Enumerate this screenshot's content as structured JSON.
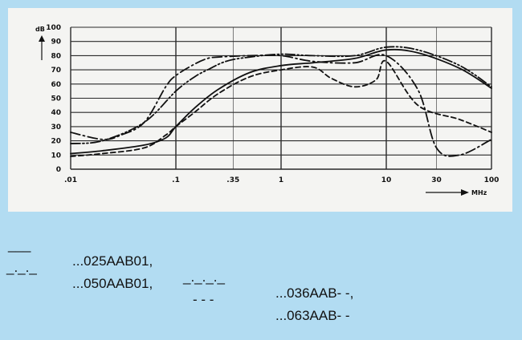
{
  "chart_data": {
    "type": "line",
    "ylabel": "dB",
    "xlabel": "MHz",
    "x_scale": "log",
    "xlim": [
      0.01,
      100
    ],
    "ylim": [
      0,
      100
    ],
    "x_ticks": [
      ".01",
      ".1",
      ".35",
      "1",
      "10",
      "30",
      "100"
    ],
    "y_ticks": [
      "0",
      "10",
      "20",
      "30",
      "40",
      "50",
      "60",
      "70",
      "80",
      "90",
      "100"
    ],
    "grid": true,
    "series": [
      {
        "name": "...025AAB01",
        "style": "solid",
        "x": [
          0.01,
          0.02,
          0.05,
          0.08,
          0.1,
          0.15,
          0.25,
          0.5,
          1,
          2,
          5,
          10,
          20,
          50,
          100
        ],
        "y": [
          11,
          13,
          17,
          22,
          30,
          43,
          56,
          68,
          73,
          75,
          78,
          84,
          82,
          71,
          57
        ]
      },
      {
        "name": "...036AAB- -",
        "style": "dashdotdot",
        "x": [
          0.01,
          0.02,
          0.05,
          0.1,
          0.15,
          0.2,
          0.3,
          0.5,
          1,
          2,
          5,
          10,
          20,
          50,
          100
        ],
        "y": [
          18,
          20,
          33,
          55,
          65,
          70,
          76,
          79,
          81,
          80,
          80,
          86,
          84,
          73,
          58
        ]
      },
      {
        "name": "...050AAB01",
        "style": "dashdot",
        "x": [
          0.01,
          0.02,
          0.03,
          0.05,
          0.08,
          0.1,
          0.15,
          0.2,
          0.25,
          0.5,
          1,
          2,
          5,
          10,
          20,
          30,
          50,
          100
        ],
        "y": [
          26,
          21,
          24,
          33,
          58,
          66,
          74,
          78,
          79,
          80,
          80,
          76,
          75,
          80,
          56,
          15,
          10,
          21
        ]
      },
      {
        "name": "...063AAB- -",
        "style": "dashed",
        "x": [
          0.01,
          0.02,
          0.05,
          0.08,
          0.1,
          0.15,
          0.25,
          0.5,
          1,
          2,
          3,
          5,
          8,
          10,
          20,
          50,
          100
        ],
        "y": [
          9,
          11,
          15,
          24,
          30,
          40,
          53,
          65,
          70,
          72,
          64,
          58,
          63,
          76,
          45,
          35,
          26
        ]
      }
    ]
  },
  "legend": {
    "row1_sym1": "___",
    "row1_lbl1": "...025AAB01,",
    "row1_sym2": "_._._._",
    "row1_lbl2": "...036AAB- -,",
    "row2_sym1": "_._._",
    "row2_lbl1": "...050AAB01,",
    "row2_sym2": "- - -",
    "row2_lbl2": "...063AAB- -"
  },
  "colors": {
    "background": "#b2dcf2",
    "chart_background": "#f4f4f2",
    "ink": "#111111",
    "grid": "#2a2a2a"
  }
}
